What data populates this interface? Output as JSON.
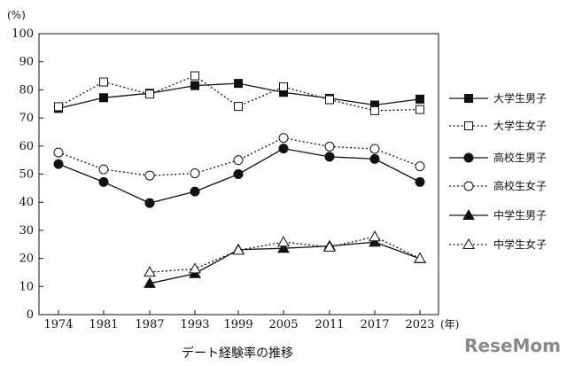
{
  "caption": "デート経験率の推移",
  "watermark": "ReseMom",
  "chart_data": {
    "type": "line",
    "title": "",
    "xlabel": "(年)",
    "ylabel": "(%)",
    "x_categories": [
      "1974",
      "1981",
      "1987",
      "1993",
      "1999",
      "2005",
      "2011",
      "2017",
      "2023"
    ],
    "ylim": [
      0,
      100
    ],
    "yticks": [
      "0",
      "10",
      "20",
      "30",
      "40",
      "50",
      "60",
      "70",
      "80",
      "90",
      "100"
    ],
    "grid": false,
    "legend_position": "right",
    "series": [
      {
        "name": "大学生男子",
        "marker": "square-filled",
        "dash": "solid",
        "values": [
          73.4,
          77.2,
          78.8,
          81.5,
          82.3,
          79.1,
          77.0,
          74.6,
          76.7
        ]
      },
      {
        "name": "大学生女子",
        "marker": "square-open",
        "dash": "dotted",
        "values": [
          74.0,
          82.8,
          78.5,
          85.0,
          74.1,
          81.1,
          76.5,
          72.6,
          73.0
        ]
      },
      {
        "name": "高校生男子",
        "marker": "circle-filled",
        "dash": "solid",
        "values": [
          53.6,
          47.2,
          39.7,
          43.8,
          50.0,
          59.1,
          56.2,
          55.4,
          47.2
        ]
      },
      {
        "name": "高校生女子",
        "marker": "circle-open",
        "dash": "dotted",
        "values": [
          57.7,
          51.7,
          49.5,
          50.3,
          55.0,
          62.9,
          59.8,
          59.0,
          52.8
        ]
      },
      {
        "name": "中学生男子",
        "marker": "triangle-filled",
        "dash": "solid",
        "values": [
          null,
          null,
          11.1,
          14.6,
          23.1,
          23.6,
          24.4,
          25.8,
          19.9
        ]
      },
      {
        "name": "中学生女子",
        "marker": "triangle-open",
        "dash": "dotted",
        "values": [
          null,
          null,
          15.1,
          16.3,
          22.9,
          25.8,
          24.0,
          27.7,
          20.0
        ]
      }
    ]
  }
}
